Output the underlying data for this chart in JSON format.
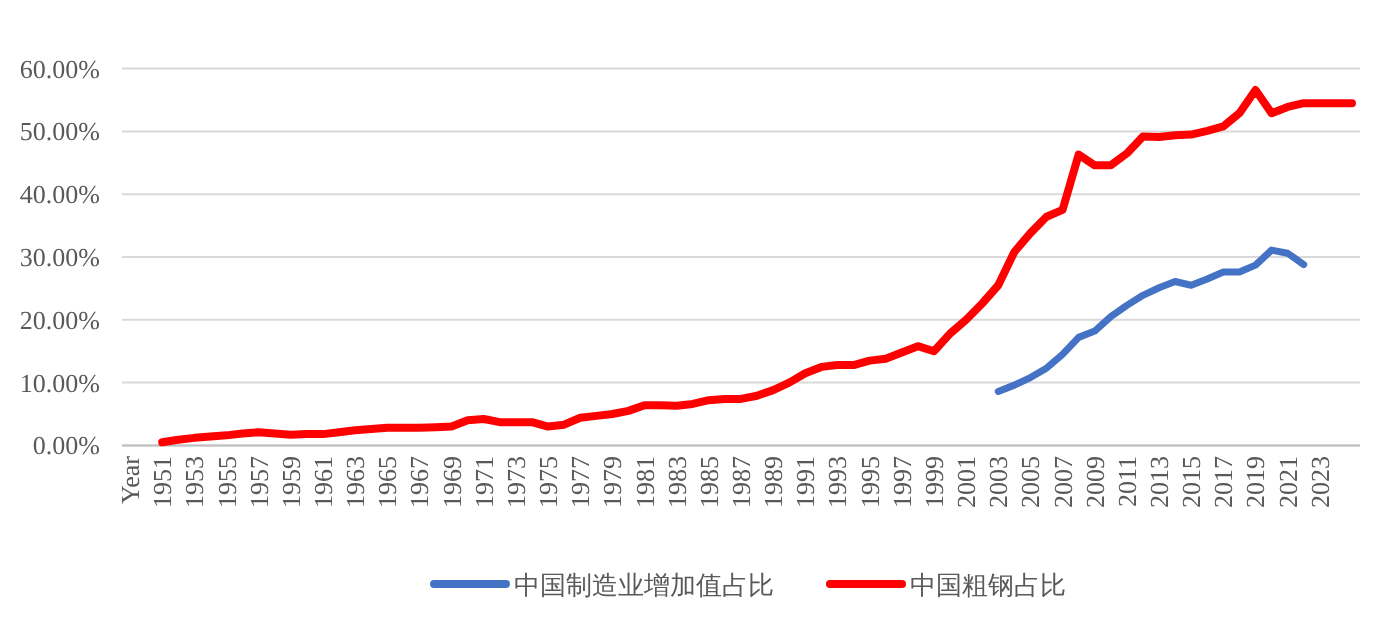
{
  "chart_data": {
    "type": "line",
    "categories": [
      "Year",
      null,
      "1951",
      null,
      "1953",
      null,
      "1955",
      null,
      "1957",
      null,
      "1959",
      null,
      "1961",
      null,
      "1963",
      null,
      "1965",
      null,
      "1967",
      null,
      "1969",
      null,
      "1971",
      null,
      "1973",
      null,
      "1975",
      null,
      "1977",
      null,
      "1979",
      null,
      "1981",
      null,
      "1983",
      null,
      "1985",
      null,
      "1987",
      null,
      "1989",
      null,
      "1991",
      null,
      "1993",
      null,
      "1995",
      null,
      "1997",
      null,
      "1999",
      null,
      "2001",
      null,
      "2003",
      null,
      "2005",
      null,
      "2007",
      null,
      "2009",
      null,
      "2011",
      null,
      "2013",
      null,
      "2015",
      null,
      "2017",
      null,
      "2019",
      null,
      "2021",
      null,
      "2023",
      null,
      null
    ],
    "series": [
      {
        "name": "中国制造业增加值占比",
        "color": "#4472c4",
        "values": [
          null,
          null,
          null,
          null,
          null,
          null,
          null,
          null,
          null,
          null,
          null,
          null,
          null,
          null,
          null,
          null,
          null,
          null,
          null,
          null,
          null,
          null,
          null,
          null,
          null,
          null,
          null,
          null,
          null,
          null,
          null,
          null,
          null,
          null,
          null,
          null,
          null,
          null,
          null,
          null,
          null,
          null,
          null,
          null,
          null,
          null,
          null,
          null,
          null,
          null,
          null,
          null,
          null,
          null,
          8.6,
          9.6,
          10.8,
          12.3,
          14.5,
          17.2,
          18.2,
          20.5,
          22.3,
          23.9,
          25.1,
          26.1,
          25.5,
          26.5,
          27.6,
          27.6,
          28.7,
          31.1,
          30.6,
          28.8,
          null,
          null,
          null
        ]
      },
      {
        "name": "中国粗钢占比",
        "color": "#ff0000",
        "values": [
          null,
          null,
          0.5,
          0.9,
          1.2,
          1.4,
          1.6,
          1.9,
          2.1,
          1.9,
          1.7,
          1.8,
          1.8,
          2.1,
          2.4,
          2.6,
          2.8,
          2.8,
          2.8,
          2.9,
          3.0,
          4.0,
          4.2,
          3.7,
          3.7,
          3.7,
          3.0,
          3.3,
          4.4,
          4.7,
          5.0,
          5.5,
          6.4,
          6.4,
          6.3,
          6.6,
          7.2,
          7.4,
          7.4,
          7.9,
          8.8,
          10.0,
          11.5,
          12.5,
          12.8,
          12.8,
          13.5,
          13.8,
          14.8,
          15.8,
          15.0,
          17.8,
          20.0,
          22.6,
          25.5,
          30.8,
          33.8,
          36.4,
          37.5,
          46.3,
          44.6,
          44.6,
          46.5,
          49.2,
          49.1,
          49.4,
          49.5,
          50.1,
          50.8,
          52.9,
          56.6,
          52.9,
          53.9,
          54.5,
          54.5,
          54.5,
          54.5
        ]
      }
    ],
    "ylim": [
      0,
      60
    ],
    "yticks": [
      {
        "value": 0,
        "label": "0.00%"
      },
      {
        "value": 10,
        "label": "10.00%"
      },
      {
        "value": 20,
        "label": "20.00%"
      },
      {
        "value": 30,
        "label": "30.00%"
      },
      {
        "value": 40,
        "label": "40.00%"
      },
      {
        "value": 50,
        "label": "50.00%"
      },
      {
        "value": 60,
        "label": "60.00%"
      }
    ],
    "grid": "y",
    "legend": "bottom",
    "marker": "none",
    "line_style": "solid"
  }
}
